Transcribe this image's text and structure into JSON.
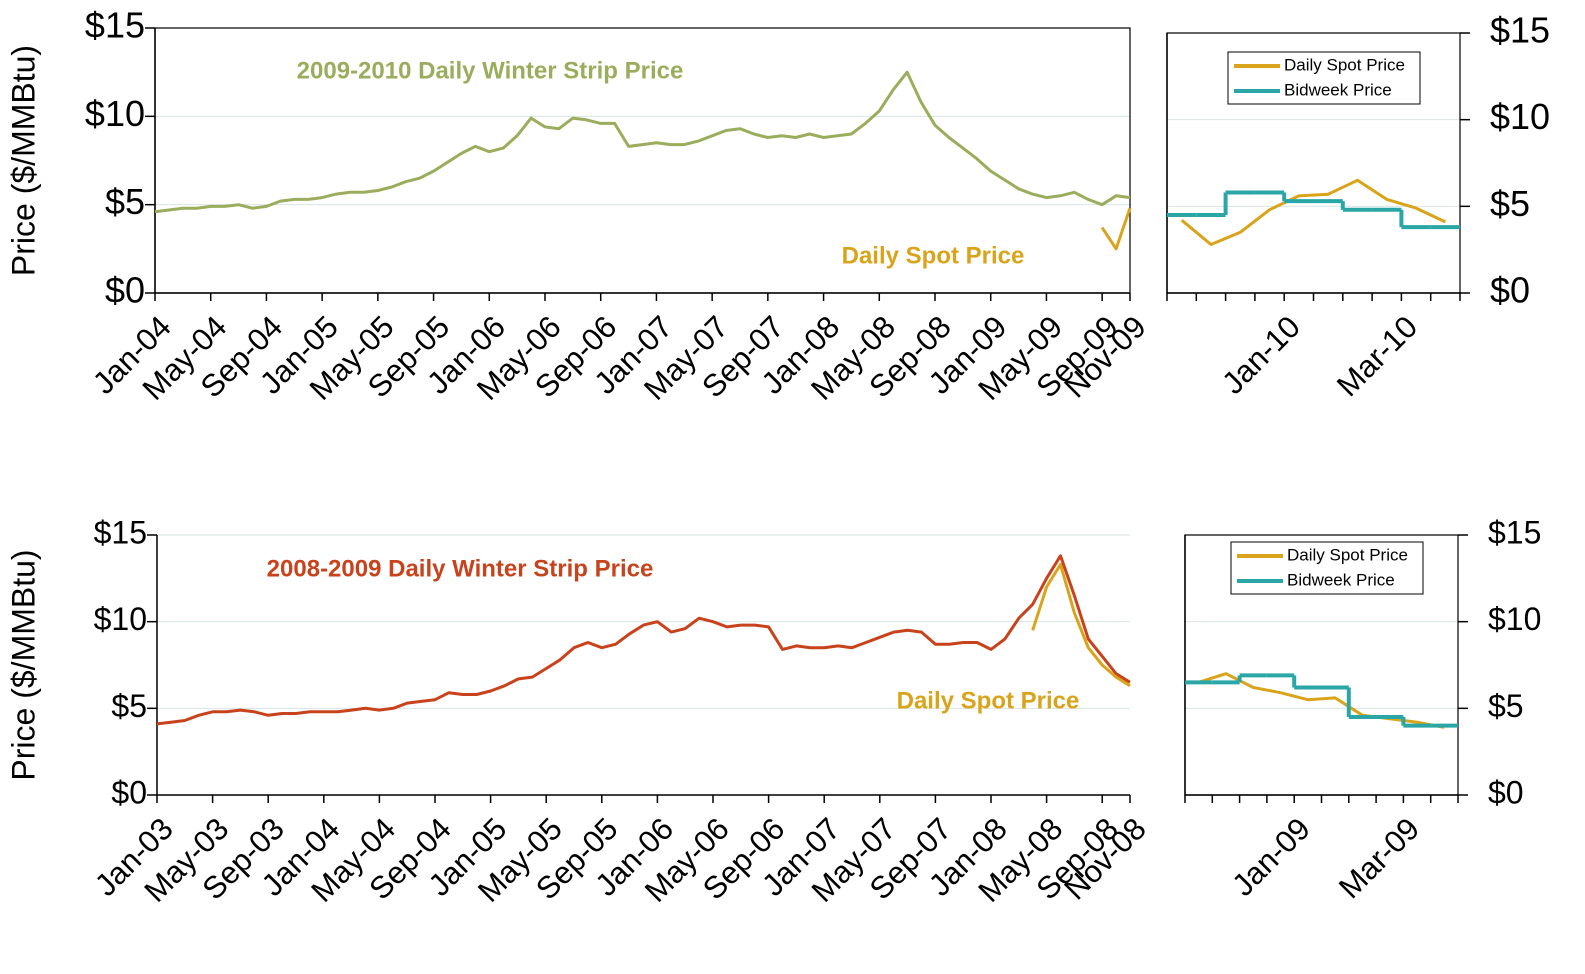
{
  "chart_data": [
    {
      "type": "line",
      "y_label": "Price ($/MMBtu)",
      "frame": true,
      "grid": true,
      "legend": false,
      "y_axis_side": "left",
      "categories": [
        "Jan-04",
        null,
        null,
        null,
        "May-04",
        null,
        null,
        null,
        "Sep-04",
        null,
        null,
        null,
        "Jan-05",
        null,
        null,
        null,
        "May-05",
        null,
        null,
        null,
        "Sep-05",
        null,
        null,
        null,
        "Jan-06",
        null,
        null,
        null,
        "May-06",
        null,
        null,
        null,
        "Sep-06",
        null,
        null,
        null,
        "Jan-07",
        null,
        null,
        null,
        "May-07",
        null,
        null,
        null,
        "Sep-07",
        null,
        null,
        null,
        "Jan-08",
        null,
        null,
        null,
        "May-08",
        null,
        null,
        null,
        "Sep-08",
        null,
        null,
        null,
        "Jan-09",
        null,
        null,
        null,
        "May-09",
        null,
        null,
        null,
        "Sep-09",
        null,
        "Nov-09"
      ],
      "series": [
        {
          "name": "2009-2010 Daily Winter Strip Price",
          "color": "#9aad5c",
          "label_color": "#9aad5c",
          "values": [
            4.6,
            4.7,
            4.8,
            4.8,
            4.9,
            4.9,
            5.0,
            4.8,
            4.9,
            5.2,
            5.3,
            5.3,
            5.4,
            5.6,
            5.7,
            5.7,
            5.8,
            6.0,
            6.3,
            6.5,
            6.9,
            7.4,
            7.9,
            8.3,
            8.0,
            8.2,
            8.9,
            9.9,
            9.4,
            9.3,
            9.9,
            9.8,
            9.6,
            9.6,
            8.3,
            8.4,
            8.5,
            8.4,
            8.4,
            8.6,
            8.9,
            9.2,
            9.3,
            9.0,
            8.8,
            8.9,
            8.8,
            9.0,
            8.8,
            8.9,
            9.0,
            9.6,
            10.3,
            11.5,
            12.5,
            10.8,
            9.5,
            8.8,
            8.2,
            7.6,
            6.9,
            6.4,
            5.9,
            5.6,
            5.4,
            5.5,
            5.7,
            5.3,
            5.0,
            5.5,
            5.4
          ]
        },
        {
          "name": "Daily Spot Price",
          "color": "#d9a31a",
          "label_color": "#d9a31a",
          "values": [
            null,
            null,
            null,
            null,
            null,
            null,
            null,
            null,
            null,
            null,
            null,
            null,
            null,
            null,
            null,
            null,
            null,
            null,
            null,
            null,
            null,
            null,
            null,
            null,
            null,
            null,
            null,
            null,
            null,
            null,
            null,
            null,
            null,
            null,
            null,
            null,
            null,
            null,
            null,
            null,
            null,
            null,
            null,
            null,
            null,
            null,
            null,
            null,
            null,
            null,
            null,
            null,
            null,
            null,
            null,
            null,
            null,
            null,
            null,
            null,
            null,
            null,
            null,
            null,
            null,
            null,
            null,
            null,
            3.7,
            2.5,
            4.8
          ]
        }
      ],
      "ylim": [
        0,
        15
      ],
      "yticks": [
        {
          "value": 0,
          "label": "$0"
        },
        {
          "value": 5,
          "label": "$5"
        },
        {
          "value": 10,
          "label": "$10"
        },
        {
          "value": 15,
          "label": "$15"
        }
      ]
    },
    {
      "type": "line",
      "frame": true,
      "grid": true,
      "legend": "upper right",
      "y_axis_side": "right",
      "categories": [
        null,
        null,
        null,
        null,
        "Jan-10",
        null,
        null,
        null,
        "Mar-10",
        null
      ],
      "series": [
        {
          "name": "Daily Spot Price",
          "color": "#d9a31a",
          "values": [
            4.2,
            2.8,
            3.5,
            4.8,
            5.6,
            5.7,
            6.5,
            5.4,
            4.9,
            4.1
          ]
        },
        {
          "name": "Bidweek Price",
          "color": "#2aa6a6",
          "step": true,
          "values": [
            4.5,
            4.5,
            5.8,
            5.8,
            5.3,
            5.3,
            4.8,
            4.8,
            3.8,
            3.8
          ]
        }
      ],
      "ylim": [
        0,
        15
      ],
      "yticks": [
        {
          "value": 0,
          "label": "$0"
        },
        {
          "value": 5,
          "label": "$5"
        },
        {
          "value": 10,
          "label": "$10"
        },
        {
          "value": 15,
          "label": "$15"
        }
      ]
    },
    {
      "type": "line",
      "y_label": "Price ($/MMBtu)",
      "frame": false,
      "grid": true,
      "legend": false,
      "y_axis_side": "left",
      "categories": [
        "Jan-03",
        null,
        null,
        null,
        "May-03",
        null,
        null,
        null,
        "Sep-03",
        null,
        null,
        null,
        "Jan-04",
        null,
        null,
        null,
        "May-04",
        null,
        null,
        null,
        "Sep-04",
        null,
        null,
        null,
        "Jan-05",
        null,
        null,
        null,
        "May-05",
        null,
        null,
        null,
        "Sep-05",
        null,
        null,
        null,
        "Jan-06",
        null,
        null,
        null,
        "May-06",
        null,
        null,
        null,
        "Sep-06",
        null,
        null,
        null,
        "Jan-07",
        null,
        null,
        null,
        "May-07",
        null,
        null,
        null,
        "Sep-07",
        null,
        null,
        null,
        "Jan-08",
        null,
        null,
        null,
        "May-08",
        null,
        null,
        null,
        "Sep-08",
        null,
        "Nov-08"
      ],
      "series": [
        {
          "name": "2008-2009 Daily Winter Strip Price",
          "color": "#c8421c",
          "label_color": "#c8421c",
          "values": [
            4.1,
            4.2,
            4.3,
            4.6,
            4.8,
            4.8,
            4.9,
            4.8,
            4.6,
            4.7,
            4.7,
            4.8,
            4.8,
            4.8,
            4.9,
            5.0,
            4.9,
            5.0,
            5.3,
            5.4,
            5.5,
            5.9,
            5.8,
            5.8,
            6.0,
            6.3,
            6.7,
            6.8,
            7.3,
            7.8,
            8.5,
            8.8,
            8.5,
            8.7,
            9.3,
            9.8,
            10.0,
            9.4,
            9.6,
            10.2,
            10.0,
            9.7,
            9.8,
            9.8,
            9.7,
            8.4,
            8.6,
            8.5,
            8.5,
            8.6,
            8.5,
            8.8,
            9.1,
            9.4,
            9.5,
            9.4,
            8.7,
            8.7,
            8.8,
            8.8,
            8.4,
            9.0,
            10.2,
            11.0,
            12.5,
            13.8,
            11.5,
            9.0,
            8.0,
            7.0,
            6.5
          ]
        },
        {
          "name": "Daily Spot Price",
          "color": "#d9a31a",
          "label_color": "#d9a31a",
          "values": [
            null,
            null,
            null,
            null,
            null,
            null,
            null,
            null,
            null,
            null,
            null,
            null,
            null,
            null,
            null,
            null,
            null,
            null,
            null,
            null,
            null,
            null,
            null,
            null,
            null,
            null,
            null,
            null,
            null,
            null,
            null,
            null,
            null,
            null,
            null,
            null,
            null,
            null,
            null,
            null,
            null,
            null,
            null,
            null,
            null,
            null,
            null,
            null,
            null,
            null,
            null,
            null,
            null,
            null,
            null,
            null,
            null,
            null,
            null,
            null,
            null,
            null,
            null,
            9.5,
            12.0,
            13.3,
            10.5,
            8.5,
            7.5,
            6.8,
            6.3
          ]
        }
      ],
      "ylim": [
        0,
        15
      ],
      "yticks": [
        {
          "value": 0,
          "label": "$0"
        },
        {
          "value": 5,
          "label": "$5"
        },
        {
          "value": 10,
          "label": "$10"
        },
        {
          "value": 15,
          "label": "$15"
        }
      ]
    },
    {
      "type": "line",
      "frame": true,
      "grid": true,
      "legend": "upper right",
      "y_axis_side": "right",
      "categories": [
        null,
        null,
        null,
        null,
        "Jan-09",
        null,
        null,
        null,
        "Mar-09",
        null
      ],
      "series": [
        {
          "name": "Daily Spot Price",
          "color": "#d9a31a",
          "values": [
            6.5,
            7.0,
            6.2,
            5.9,
            5.5,
            5.6,
            4.6,
            4.4,
            4.2,
            3.9
          ]
        },
        {
          "name": "Bidweek Price",
          "color": "#2aa6a6",
          "step": true,
          "values": [
            6.5,
            6.5,
            6.9,
            6.9,
            6.2,
            6.2,
            4.5,
            4.5,
            4.0,
            4.0
          ]
        }
      ],
      "ylim": [
        0,
        15
      ],
      "yticks": [
        {
          "value": 0,
          "label": "$0"
        },
        {
          "value": 5,
          "label": "$5"
        },
        {
          "value": 10,
          "label": "$10"
        },
        {
          "value": 15,
          "label": "$15"
        }
      ]
    }
  ]
}
